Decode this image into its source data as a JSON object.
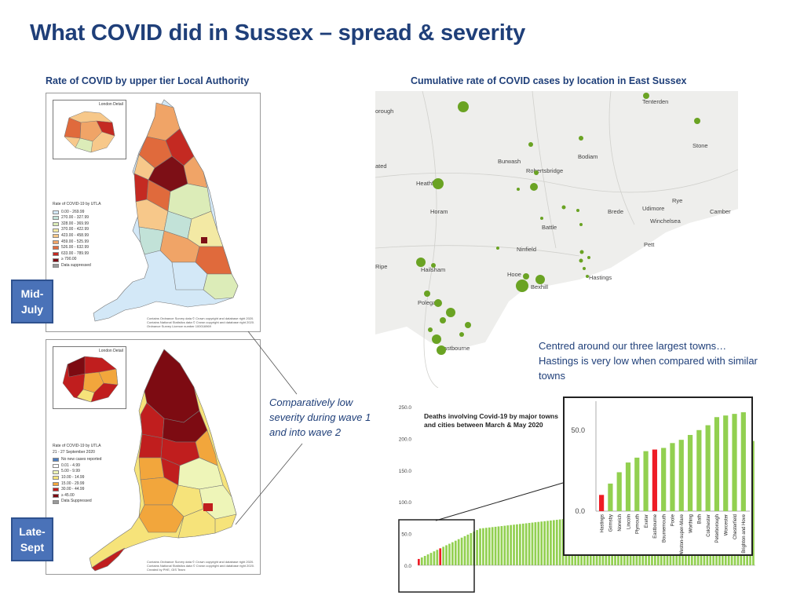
{
  "header": {
    "title": "What COVID did in Sussex – spread & severity"
  },
  "left_section": {
    "subtitle": "Rate of COVID by upper tier Local Authority",
    "map_mid": {
      "london_label": "London Detail",
      "legend_title": "Rate of COVID-19 by UTLA",
      "legend": [
        {
          "label": "0.00 - 269.99",
          "color": "#d3e8f7"
        },
        {
          "label": "270.00 - 327.99",
          "color": "#c2e2d8"
        },
        {
          "label": "328.00 - 369.99",
          "color": "#dcecb8"
        },
        {
          "label": "370.00 - 422.99",
          "color": "#f3e9a4"
        },
        {
          "label": "423.00 - 458.99",
          "color": "#f7c88a"
        },
        {
          "label": "459.00 - 525.99",
          "color": "#f0a467"
        },
        {
          "label": "526.00 - 632.99",
          "color": "#e06a3c"
        },
        {
          "label": "633.00 - 789.99",
          "color": "#c42a22"
        },
        {
          "label": "≥ 790.00",
          "color": "#7d0f16"
        },
        {
          "label": "Data suppressed",
          "color": "#999999"
        }
      ],
      "credits": [
        "Contains Ordnance Survey data © Crown copyright and database right 2020.",
        "Contains National Statistics data © Crown copyright and database right 2020.",
        "Ordnance Survey Licence number 100016969"
      ]
    },
    "map_late": {
      "london_label": "London Detail",
      "legend_title": "Rate of COVID-19 by UTLA",
      "legend_subtitle": "21 - 27 September 2020",
      "legend": [
        {
          "label": "No new cases reported",
          "color": "#4d7ec0"
        },
        {
          "label": "0.01 - 4.99",
          "color": "#ffffff"
        },
        {
          "label": "5.00 - 9.99",
          "color": "#eef5b8"
        },
        {
          "label": "10.00 - 14.99",
          "color": "#f6e37a"
        },
        {
          "label": "15.00 - 29.99",
          "color": "#f2a63c"
        },
        {
          "label": "30.00 - 44.99",
          "color": "#c01e1e"
        },
        {
          "label": "≥ 45.00",
          "color": "#7d0b12"
        },
        {
          "label": "Data Suppressed",
          "color": "#999999"
        }
      ],
      "credits": [
        "Contains Ordnance Survey data © Crown copyright and database right 2020.",
        "Contains National Statistics data © Crown copyright and database right 2020.",
        "Created by PHE, GIS Team"
      ]
    },
    "tag_mid": "Mid-July",
    "tag_late": "Late-Sept"
  },
  "right_section": {
    "subtitle": "Cumulative rate of COVID cases by location in East Sussex",
    "towns": [
      "Tenterden",
      "Stone",
      "Burwash",
      "Bodiam",
      "Robertsbridge",
      "Heathfield",
      "Rye",
      "Horam",
      "Brede",
      "Udimore",
      "Camber",
      "Winchelsea",
      "Battle",
      "Pett",
      "Ninfield",
      "Ripe",
      "Hailsham",
      "Hooe",
      "Bexhill",
      "Hastings",
      "Polegate",
      "Eastbourne",
      "orough",
      "ated"
    ]
  },
  "annotations": {
    "towns_note": "Centred around our three largest towns… Hastings is very low when compared with similar towns",
    "severity_note": "Comparatively low severity during wave 1 and into wave 2"
  },
  "chart_data": {
    "type": "bar",
    "title": "Deaths involving Covid-19 by major towns and cities between March & May 2020",
    "yticks": [
      0.0,
      50.0,
      100.0,
      150.0,
      200.0,
      250.0
    ],
    "ylim": [
      0,
      250
    ],
    "highlight_color": "#ee1c25",
    "bar_color": "#92d050",
    "inset": {
      "ytick": "50.0",
      "ytick0": "0.0",
      "categories": [
        "Hastings",
        "Grimsby",
        "Norwich",
        "Lincoln",
        "Plymouth",
        "Exeter",
        "Eastbourne",
        "Bournemouth",
        "Poole",
        "Weston-super-Mare",
        "Worthing",
        "Bath",
        "Colchester",
        "Peterborough",
        "Worcester",
        "Chesterfield",
        "Brighton and Hove"
      ],
      "values": [
        10,
        17,
        24,
        30,
        33,
        37,
        38,
        39,
        42,
        44,
        47,
        50,
        53,
        58,
        59,
        60,
        61
      ],
      "highlight": [
        "Hastings",
        "Eastbourne"
      ]
    }
  }
}
